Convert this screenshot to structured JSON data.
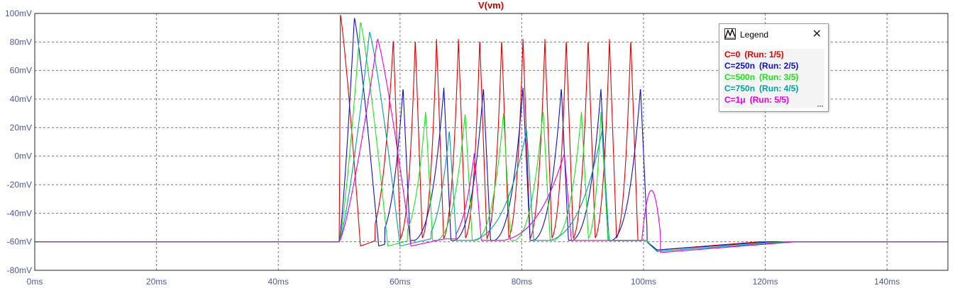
{
  "chart_data": {
    "type": "line",
    "title": "V(vm)",
    "xlabel": "",
    "ylabel": "",
    "xlim": [
      0,
      150
    ],
    "ylim": [
      -80,
      100
    ],
    "grid": true,
    "x_ticks": [
      "0ms",
      "20ms",
      "40ms",
      "60ms",
      "80ms",
      "100ms",
      "120ms",
      "140ms"
    ],
    "x_tick_values": [
      0,
      20,
      40,
      60,
      80,
      100,
      120,
      140
    ],
    "y_ticks": [
      "100mV",
      "80mV",
      "60mV",
      "40mV",
      "20mV",
      "0mV",
      "-20mV",
      "-40mV",
      "-60mV",
      "-80mV"
    ],
    "y_tick_values": [
      100,
      80,
      60,
      40,
      20,
      0,
      -20,
      -40,
      -60,
      -80
    ],
    "rest_mV": -60,
    "stim_start_ms": 50,
    "stim_end_ms": 100,
    "series": [
      {
        "name": "C=0",
        "run": "(Run: 1/5)",
        "color": "#e00000",
        "first_peak": {
          "t": 50.2,
          "v": 99,
          "w": 3.3
        },
        "spikes_t": [
          58.9,
          62.5,
          66.0,
          69.6,
          73.1,
          76.7,
          80.2,
          83.8,
          87.3,
          90.9,
          94.4,
          97.9
        ],
        "spikes_v": [
          82,
          82,
          82,
          82,
          82,
          82,
          82,
          82,
          82,
          82,
          82,
          82
        ],
        "post_peak": null,
        "undershoot": {
          "v": -66,
          "t_end": 119
        }
      },
      {
        "name": "C=250n",
        "run": "(Run: 2/5)",
        "color": "#1010c0",
        "first_peak": {
          "t": 52.5,
          "v": 97,
          "w": 4.0
        },
        "spikes_t": [
          60.5,
          67.2,
          73.7,
          80.2,
          86.5,
          93.0,
          99.5
        ],
        "spikes_v": [
          48,
          48,
          48,
          48,
          48,
          47,
          48
        ],
        "post_peak": null,
        "undershoot": {
          "v": -66,
          "t_end": 121
        }
      },
      {
        "name": "C=500n",
        "run": "(Run: 3/5)",
        "color": "#20e020",
        "first_peak": {
          "t": 53.5,
          "v": 94,
          "w": 4.5
        },
        "spikes_t": [
          64.2,
          70.7,
          77.0,
          83.5,
          89.8,
          93.0
        ],
        "spikes_v": [
          31,
          30,
          30,
          32,
          31,
          31
        ],
        "post_peak": null,
        "undershoot": {
          "v": -67,
          "t_end": 123
        }
      },
      {
        "name": "C=750n",
        "run": "(Run: 4/5)",
        "color": "#00a0a0",
        "first_peak": {
          "t": 55.0,
          "v": 87,
          "w": 5.0
        },
        "spikes_t": [
          68.1,
          80.8,
          93.2
        ],
        "spikes_v": [
          18,
          18,
          18
        ],
        "post_peak": null,
        "undershoot": {
          "v": -67,
          "t_end": 124
        }
      },
      {
        "name": "C=1μ",
        "run": "(Run: 5/5)",
        "color": "#e000e0",
        "first_peak": {
          "t": 56.3,
          "v": 82,
          "w": 5.5
        },
        "spikes_t": [
          72.2,
          87.0
        ],
        "spikes_v": [
          2,
          2
        ],
        "post_peak": {
          "t": 101.3,
          "v": -24
        },
        "undershoot": {
          "v": -68,
          "t_end": 125
        }
      }
    ]
  },
  "legend": {
    "title": "Legend",
    "close": "✕",
    "icon": "plot-trace-icon"
  }
}
